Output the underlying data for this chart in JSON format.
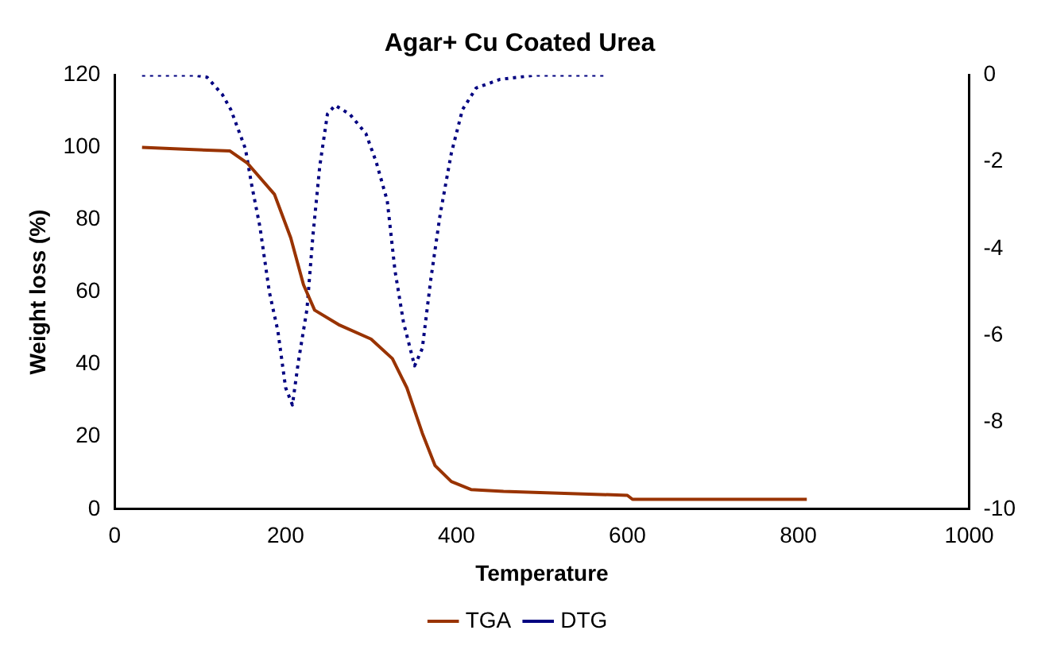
{
  "chart_data": {
    "type": "line",
    "title": "Agar+ Cu Coated Urea",
    "xlabel": "Temperature",
    "ylabel": "Weight loss (%)",
    "xlim": [
      0,
      1000
    ],
    "xticks": [
      0,
      200,
      400,
      600,
      800,
      1000
    ],
    "ylim": [
      0,
      120
    ],
    "yticks": [
      0,
      20,
      40,
      60,
      80,
      100,
      120
    ],
    "y2lim": [
      -10,
      0
    ],
    "y2ticks": [
      -10,
      -8,
      -6,
      -4,
      -2,
      0
    ],
    "grid": false,
    "legend": "bottom",
    "marker": "none",
    "series": [
      {
        "name": "TGA",
        "color": "#993300",
        "line_style": "solid",
        "x": [
          32,
          81,
          135,
          155,
          187,
          206,
          221,
          234,
          262,
          300,
          325,
          342,
          360,
          375,
          394,
          417,
          455,
          600,
          606,
          810
        ],
        "values": [
          100,
          99.5,
          99,
          95.7,
          87,
          75,
          62,
          55,
          51,
          47,
          41.6,
          33.5,
          21,
          12,
          7.6,
          5.4,
          4.9,
          3.8,
          2.7,
          2.7
        ]
      },
      {
        "name": "DTG",
        "color": "#000080",
        "line_style": "dotted",
        "axis": "y2",
        "x": [
          32,
          92,
          108,
          126,
          136,
          153,
          160,
          170,
          181,
          191,
          200,
          208,
          215,
          225,
          232,
          240,
          249,
          258,
          275,
          294,
          306,
          319,
          328,
          338,
          351,
          360,
          370,
          381,
          394,
          407,
          423,
          451,
          494,
          574
        ],
        "values": [
          0,
          0,
          -0.05,
          -0.45,
          -0.8,
          -1.7,
          -2.5,
          -3.5,
          -5,
          -5.9,
          -7.2,
          -7.6,
          -6.6,
          -5.4,
          -3.7,
          -2.1,
          -0.9,
          -0.7,
          -0.9,
          -1.35,
          -2,
          -2.9,
          -4.5,
          -5.7,
          -6.7,
          -6.3,
          -4.7,
          -3.2,
          -1.8,
          -0.8,
          -0.3,
          -0.1,
          0,
          0
        ]
      }
    ]
  }
}
